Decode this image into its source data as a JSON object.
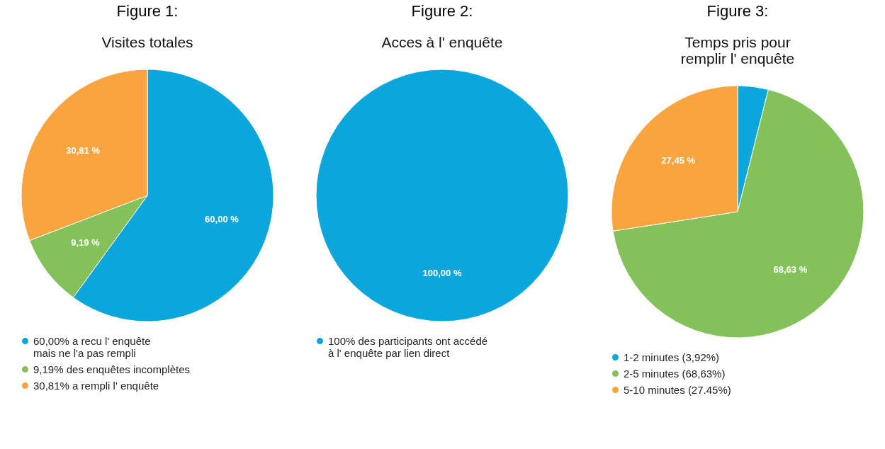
{
  "chart_data": [
    {
      "type": "pie",
      "title": "Figure 1:",
      "subtitle": "Visites totales",
      "categories": [
        "60,00% a recu l' enquête\nmais ne l'a pas rempli",
        "9,19% des enquêtes incomplètes",
        "30,81% a rempli l' enquête"
      ],
      "values": [
        60.0,
        9.19,
        30.81
      ],
      "colors": [
        "#0aa6dc",
        "#84c15a",
        "#f9a43f"
      ],
      "value_labels": [
        "60,00 %",
        "9,19 %",
        "30,81 %"
      ],
      "legend": "bottom"
    },
    {
      "type": "pie",
      "title": "Figure 2:",
      "subtitle": "Acces à l' enquête",
      "categories": [
        "100% des participants ont accédé\nà l' enquête par lien direct"
      ],
      "values": [
        100.0
      ],
      "colors": [
        "#0aa6dc"
      ],
      "value_labels": [
        "100,00 %"
      ],
      "legend": "bottom"
    },
    {
      "type": "pie",
      "title": "Figure 3:",
      "subtitle": "Temps pris pour\nremplir l' enquête",
      "categories": [
        "1-2 minutes (3,92%)",
        "2-5 minutes (68,63%)",
        "5-10 minutes (27.45%)"
      ],
      "values": [
        3.92,
        68.63,
        27.45
      ],
      "colors": [
        "#0aa6dc",
        "#84c15a",
        "#f9a43f"
      ],
      "value_labels": [
        null,
        "68,63 %",
        "27,45 %"
      ],
      "legend": "bottom"
    }
  ]
}
